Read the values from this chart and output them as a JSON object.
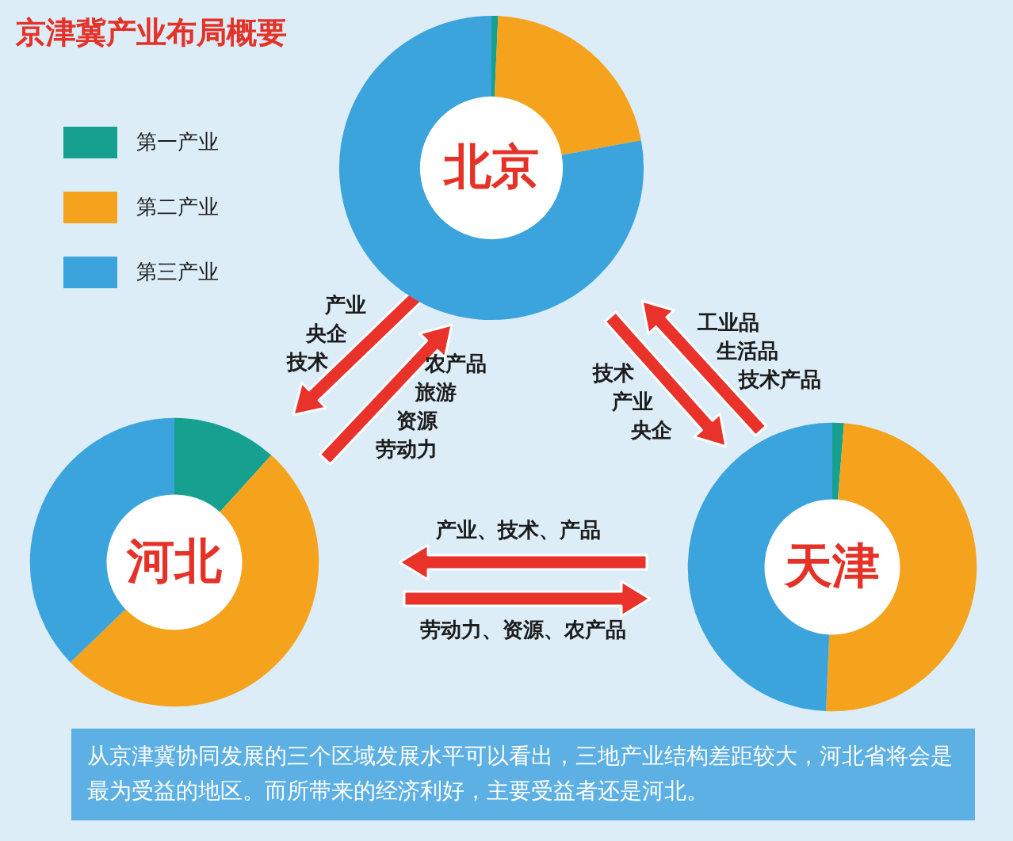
{
  "chart_data": [
    {
      "type": "other",
      "title": "京津冀产业布局概要",
      "annotations": [
        "产业",
        "央企",
        "技术",
        "农产品",
        "旅游",
        "资源",
        "劳动力",
        "技术",
        "产业",
        "央企",
        "工业品",
        "生活品",
        "技术产品",
        "产业、技术、产品",
        "劳动力、资源、农产品",
        "从京津冀协同发展的三个区域发展水平可以看出，三地产业结构差距较大，河北省将会是最为受益的地区。而所带来的经济利好，主要受益者还是河北。"
      ]
    },
    {
      "type": "donut",
      "title": "北京",
      "categories": [
        "第一产业",
        "第二产业",
        "第三产业"
      ],
      "values": [
        0.7,
        21.4,
        77.9
      ],
      "colors": [
        "#16a090",
        "#f5a21c",
        "#3ba4dd"
      ],
      "legend": "left"
    },
    {
      "type": "donut",
      "title": "河北",
      "categories": [
        null,
        null,
        null
      ],
      "values": [
        11.7,
        51.1,
        37.2
      ],
      "colors": [
        "#16a090",
        "#f5a21c",
        "#3ba4dd"
      ]
    },
    {
      "type": "donut",
      "title": "天津",
      "categories": [
        null,
        null,
        null
      ],
      "values": [
        1.3,
        49.4,
        49.3
      ],
      "colors": [
        "#16a090",
        "#f5a21c",
        "#3ba4dd"
      ]
    }
  ]
}
